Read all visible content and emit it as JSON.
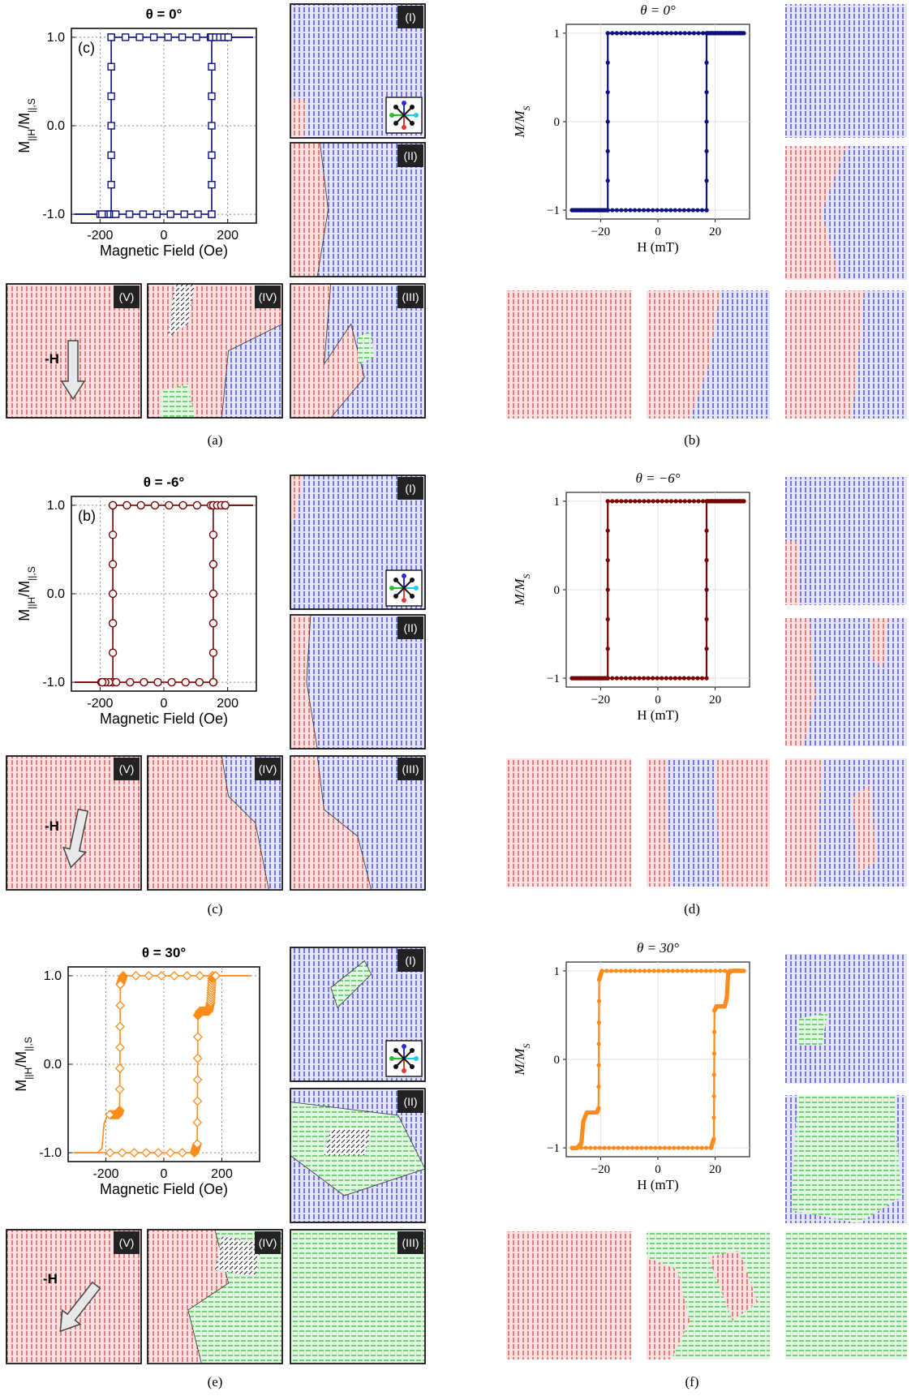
{
  "colors": {
    "blue": "#0d1180",
    "darkred": "#7a0000",
    "orange": "#ff8c1a",
    "spin_up": "#2b2bd6",
    "spin_down": "#e03a3a",
    "spin_side": "#2dbb2d",
    "spin_cyan": "#22c8e8"
  },
  "captions": [
    "(a)",
    "(b)",
    "(c)",
    "(d)",
    "(e)",
    "(f)"
  ],
  "panel_labels": [
    "(I)",
    "(II)",
    "(III)",
    "(IV)",
    "(V)"
  ],
  "field_label": "-H",
  "exp_titles": [
    "θ = 0°",
    "θ = -6°",
    "θ = 30°"
  ],
  "exp_insets": [
    "(c)",
    "(b)"
  ],
  "sim_titles": [
    "θ = 0°",
    "θ = −6°",
    "θ = 30°"
  ],
  "exp_xlabel": "Magnetic Field (Oe)",
  "exp_ylabel": "M||H/M||,S",
  "sim_xlabel": "H (mT)",
  "sim_ylabel": "M/MS",
  "chart_data": [
    {
      "type": "line",
      "title": "θ = 0°",
      "xlabel": "Magnetic Field (Oe)",
      "ylabel": "M||H/M||,S",
      "xlim": [
        -290,
        290
      ],
      "ylim": [
        -1.1,
        1.1
      ],
      "xticks": [
        -200,
        0,
        200
      ],
      "yticks": [
        -1.0,
        0.0,
        1.0
      ],
      "loop": {
        "hc_down": -165,
        "hc_up": 150,
        "xmin": -280,
        "xmax": 280,
        "step": 0
      }
    },
    {
      "type": "line",
      "title": "θ = 0°",
      "xlabel": "H (mT)",
      "ylabel": "M/MS",
      "xlim": [
        -32,
        32
      ],
      "ylim": [
        -1.1,
        1.1
      ],
      "xticks": [
        -20,
        0,
        20
      ],
      "yticks": [
        -1,
        0,
        1
      ],
      "loop": {
        "hc_down": -17.5,
        "hc_up": 17.0,
        "xmin": -30,
        "xmax": 30,
        "step": 0
      }
    },
    {
      "type": "line",
      "title": "θ = -6°",
      "xlabel": "Magnetic Field (Oe)",
      "ylabel": "M||H/M||,S",
      "xlim": [
        -290,
        290
      ],
      "ylim": [
        -1.1,
        1.1
      ],
      "xticks": [
        -200,
        0,
        200
      ],
      "yticks": [
        -1.0,
        0.0,
        1.0
      ],
      "loop": {
        "hc_down": -160,
        "hc_up": 155,
        "xmin": -280,
        "xmax": 280,
        "step": 0
      }
    },
    {
      "type": "line",
      "title": "θ = −6°",
      "xlabel": "H (mT)",
      "ylabel": "M/MS",
      "xlim": [
        -32,
        32
      ],
      "ylim": [
        -1.1,
        1.1
      ],
      "xticks": [
        -20,
        0,
        20
      ],
      "yticks": [
        -1,
        0,
        1
      ],
      "loop": {
        "hc_down": -17.5,
        "hc_up": 17.0,
        "xmin": -30,
        "xmax": 30,
        "step": 0
      }
    },
    {
      "type": "line",
      "title": "θ = 30°",
      "xlabel": "Magnetic Field (Oe)",
      "ylabel": "M||H/M||,S",
      "xlim": [
        -330,
        330
      ],
      "ylim": [
        -1.1,
        1.1
      ],
      "xticks": [
        -200,
        0,
        200
      ],
      "yticks": [
        -1.0,
        0.0,
        1.0
      ],
      "loop": {
        "hc_down": -150,
        "hc_up": 115,
        "xmin": -310,
        "xmax": 300,
        "step": -0.57
      }
    },
    {
      "type": "line",
      "title": "θ = 30°",
      "xlabel": "H (mT)",
      "ylabel": "M/MS",
      "xlim": [
        -32,
        32
      ],
      "ylim": [
        -1.1,
        1.1
      ],
      "xticks": [
        -20,
        0,
        20
      ],
      "yticks": [
        -1,
        0,
        1
      ],
      "loop": {
        "hc_down": -20.5,
        "hc_up": 19.5,
        "xmin": -30,
        "xmax": 30,
        "step": -0.6
      }
    }
  ]
}
